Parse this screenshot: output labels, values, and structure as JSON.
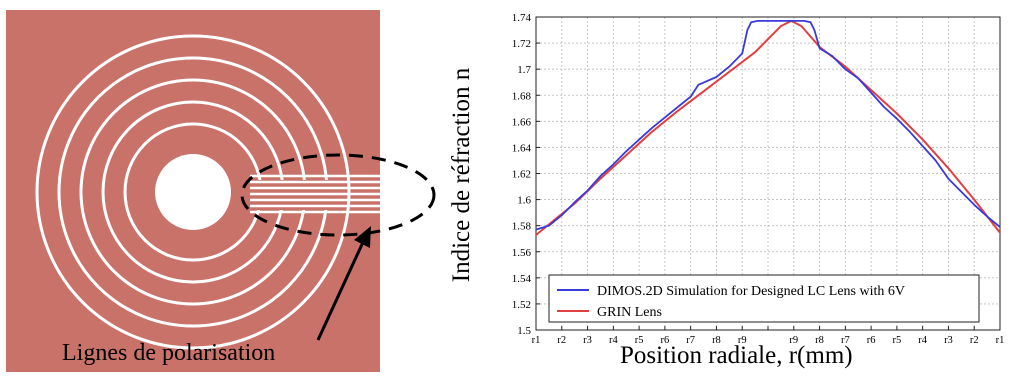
{
  "left_figure": {
    "caption": "Lignes de polarisation",
    "colors": {
      "background": "#c9726a",
      "electrode": "#ffffff",
      "marker": "#000000"
    }
  },
  "chart_data": {
    "type": "line",
    "xlabel": "Position radiale, r(mm)",
    "ylabel": "Indice de réfraction n",
    "ylim": [
      1.5,
      1.74
    ],
    "yticks": [
      "1.5",
      "1.52",
      "1.54",
      "1.56",
      "1.58",
      "1.6",
      "1.62",
      "1.64",
      "1.66",
      "1.68",
      "1.7",
      "1.72",
      "1.74"
    ],
    "xticks": [
      "r1",
      "r2",
      "r3",
      "r4",
      "r5",
      "r6",
      "r7",
      "r8",
      "r9",
      "",
      "r9",
      "r8",
      "r7",
      "r6",
      "r5",
      "r4",
      "r3",
      "r2",
      "r1"
    ],
    "x": [
      0,
      1,
      2,
      3,
      4,
      5,
      6,
      7,
      8,
      9,
      10,
      11,
      12,
      13,
      14,
      15,
      16,
      17,
      18
    ],
    "grid": true,
    "legend_position": "bottom-center",
    "series": [
      {
        "name": "DIMOS.2D Simulation for Designed LC Lens with 6V",
        "color": "#3a3ad8",
        "points": [
          [
            -0.3,
            1.578
          ],
          [
            0,
            1.577
          ],
          [
            0.5,
            1.58
          ],
          [
            1,
            1.588
          ],
          [
            1.5,
            1.598
          ],
          [
            2,
            1.607
          ],
          [
            2.5,
            1.618
          ],
          [
            3,
            1.627
          ],
          [
            3.5,
            1.637
          ],
          [
            4,
            1.646
          ],
          [
            4.5,
            1.655
          ],
          [
            5,
            1.663
          ],
          [
            5.5,
            1.671
          ],
          [
            6,
            1.679
          ],
          [
            6.3,
            1.688
          ],
          [
            7,
            1.694
          ],
          [
            7.5,
            1.702
          ],
          [
            8,
            1.712
          ],
          [
            8.2,
            1.73
          ],
          [
            8.35,
            1.736
          ],
          [
            8.6,
            1.737
          ],
          [
            10.4,
            1.737
          ],
          [
            10.65,
            1.736
          ],
          [
            10.8,
            1.73
          ],
          [
            11,
            1.716
          ],
          [
            11.5,
            1.71
          ],
          [
            12,
            1.7
          ],
          [
            12.5,
            1.693
          ],
          [
            13,
            1.682
          ],
          [
            13.5,
            1.671
          ],
          [
            14,
            1.662
          ],
          [
            14.5,
            1.652
          ],
          [
            15,
            1.641
          ],
          [
            15.5,
            1.63
          ],
          [
            16,
            1.616
          ],
          [
            16.5,
            1.606
          ],
          [
            17,
            1.596
          ],
          [
            17.5,
            1.587
          ],
          [
            18,
            1.579
          ],
          [
            18.3,
            1.578
          ]
        ]
      },
      {
        "name": "GRIN Lens",
        "color": "#e04040",
        "points": [
          [
            -0.3,
            1.568
          ],
          [
            0.5,
            1.581
          ],
          [
            1.5,
            1.597
          ],
          [
            2.5,
            1.616
          ],
          [
            3.5,
            1.634
          ],
          [
            4.5,
            1.652
          ],
          [
            5.5,
            1.668
          ],
          [
            6.5,
            1.683
          ],
          [
            7.5,
            1.698
          ],
          [
            8.5,
            1.713
          ],
          [
            9.5,
            1.733
          ],
          [
            9.9,
            1.737
          ],
          [
            10.3,
            1.733
          ],
          [
            11,
            1.717
          ],
          [
            12,
            1.702
          ],
          [
            13,
            1.684
          ],
          [
            14,
            1.666
          ],
          [
            15,
            1.646
          ],
          [
            16,
            1.624
          ],
          [
            17,
            1.6
          ],
          [
            18.3,
            1.567
          ]
        ]
      }
    ]
  }
}
